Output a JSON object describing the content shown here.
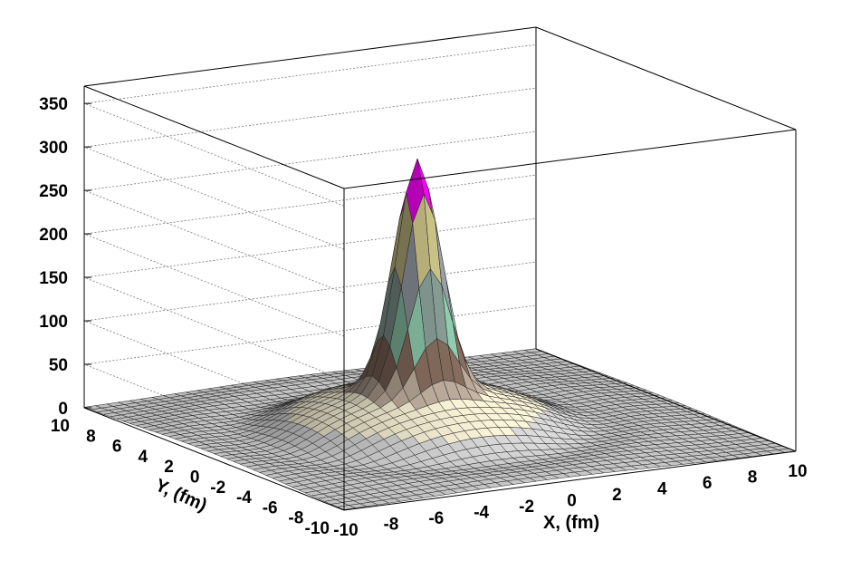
{
  "chart_data": {
    "type": "surface",
    "title": "",
    "xlabel": "X, (fm)",
    "ylabel": "Y, (fm)",
    "zlabel": "",
    "xlim": [
      -10,
      10
    ],
    "ylim": [
      -10,
      10
    ],
    "zlim": [
      0,
      370
    ],
    "x_ticks": [
      "-10",
      "-8",
      "-6",
      "-4",
      "-2",
      "0",
      "2",
      "4",
      "6",
      "8",
      "10"
    ],
    "y_ticks": [
      "-10",
      "-8",
      "-6",
      "-4",
      "-2",
      "0",
      "2",
      "4",
      "6",
      "8",
      "10"
    ],
    "z_ticks": [
      "0",
      "50",
      "100",
      "150",
      "200",
      "250",
      "300",
      "350"
    ],
    "grid": true,
    "surface": {
      "components": [
        {
          "shape": "gaussian peak",
          "amplitude": 260,
          "center_x": -1,
          "center_y": 0,
          "width": 0.9
        },
        {
          "shape": "broad mound",
          "amplitude": 55,
          "center_x": -1,
          "center_y": 0,
          "width": 4.5
        },
        {
          "shape": "ring dip",
          "amplitude": -12,
          "center_x": -1,
          "center_y": 0,
          "radius": 6.5,
          "width": 1.2
        }
      ],
      "peak_value": 318,
      "color_bands": [
        {
          "from": 0,
          "to": 25,
          "color": "#c8c8c8"
        },
        {
          "from": 25,
          "to": 50,
          "color": "#e8e2c8"
        },
        {
          "from": 50,
          "to": 75,
          "color": "#b8a898"
        },
        {
          "from": 75,
          "to": 100,
          "color": "#8a7060"
        },
        {
          "from": 100,
          "to": 125,
          "color": "#98d8b8"
        },
        {
          "from": 125,
          "to": 150,
          "color": "#90a8a0"
        },
        {
          "from": 150,
          "to": 175,
          "color": "#8aa0b8"
        },
        {
          "from": 175,
          "to": 200,
          "color": "#a0a8b0"
        },
        {
          "from": 200,
          "to": 225,
          "color": "#d8d090"
        },
        {
          "from": 225,
          "to": 250,
          "color": "#b8a8a8"
        },
        {
          "from": 250,
          "to": 275,
          "color": "#ff0000"
        },
        {
          "from": 275,
          "to": 300,
          "color": "#ff00ff"
        },
        {
          "from": 300,
          "to": 325,
          "color": "#00ee00"
        }
      ]
    }
  }
}
